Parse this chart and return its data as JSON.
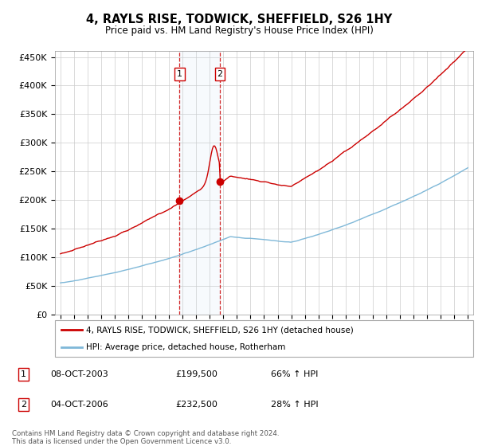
{
  "title": "4, RAYLS RISE, TODWICK, SHEFFIELD, S26 1HY",
  "subtitle": "Price paid vs. HM Land Registry's House Price Index (HPI)",
  "yticks": [
    0,
    50000,
    100000,
    150000,
    200000,
    250000,
    300000,
    350000,
    400000,
    450000
  ],
  "ytick_labels": [
    "£0",
    "£50K",
    "£100K",
    "£150K",
    "£200K",
    "£250K",
    "£300K",
    "£350K",
    "£400K",
    "£450K"
  ],
  "sale1_date": 2003.78,
  "sale1_price": 199500,
  "sale2_date": 2006.75,
  "sale2_price": 232500,
  "hpi_color": "#7fb8d8",
  "price_color": "#cc0000",
  "background_color": "#ffffff",
  "grid_color": "#cccccc",
  "legend_label_price": "4, RAYLS RISE, TODWICK, SHEFFIELD, S26 1HY (detached house)",
  "legend_label_hpi": "HPI: Average price, detached house, Rotherham",
  "footer1": "Contains HM Land Registry data © Crown copyright and database right 2024.",
  "footer2": "This data is licensed under the Open Government Licence v3.0.",
  "table_rows": [
    [
      "1",
      "08-OCT-2003",
      "£199,500",
      "66% ↑ HPI"
    ],
    [
      "2",
      "04-OCT-2006",
      "£232,500",
      "28% ↑ HPI"
    ]
  ]
}
